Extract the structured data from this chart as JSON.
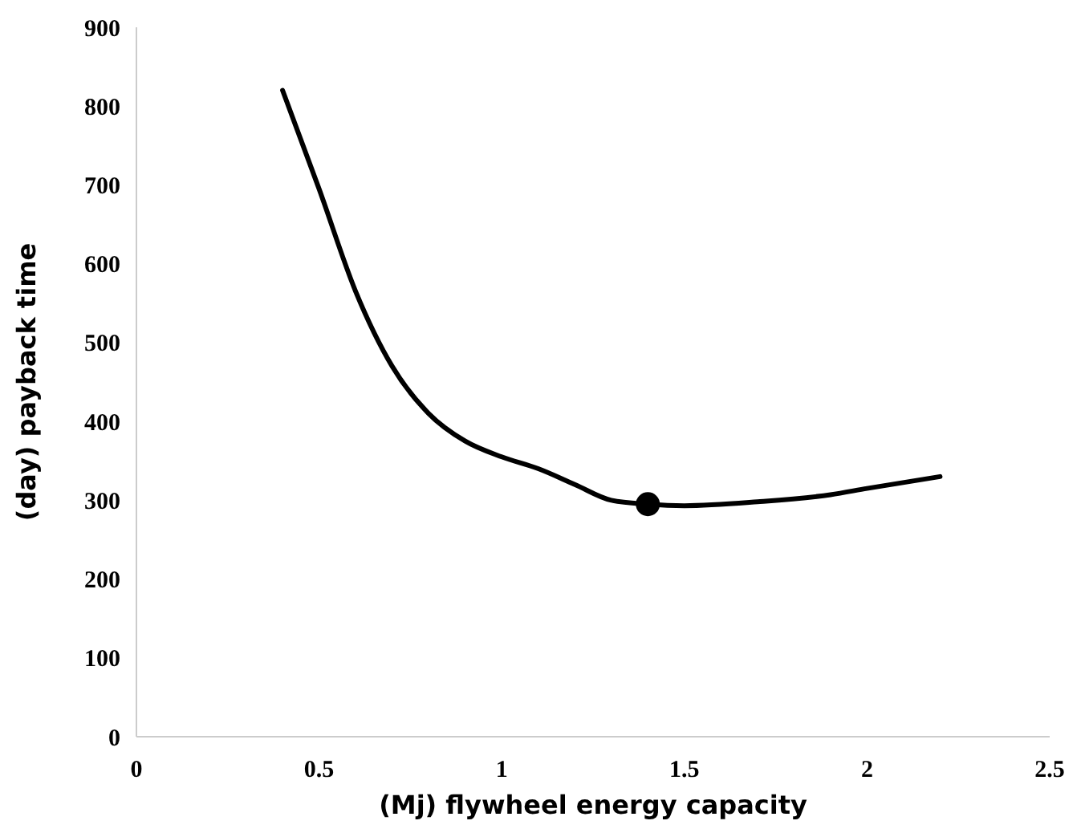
{
  "chart_data": {
    "type": "line",
    "xlabel": "(Mj) flywheel energy capacity",
    "ylabel": "(day) payback time",
    "xlim": [
      0,
      2.5
    ],
    "xticks": [
      0,
      0.5,
      1,
      1.5,
      2,
      2.5
    ],
    "ylim": [
      0,
      900
    ],
    "yticks": [
      0,
      100,
      200,
      300,
      400,
      500,
      600,
      700,
      800,
      900
    ],
    "grid": false,
    "series": [
      {
        "color": "#000000",
        "marker": "none",
        "x": [
          0.4,
          0.5,
          0.6,
          0.7,
          0.8,
          0.9,
          1.0,
          1.1,
          1.2,
          1.3,
          1.4,
          1.5,
          1.7,
          1.9,
          2.0,
          2.2
        ],
        "values": [
          820,
          695,
          565,
          470,
          410,
          375,
          355,
          340,
          320,
          300,
          295,
          293,
          298,
          307,
          315,
          330
        ]
      },
      {
        "type": "scatter",
        "color": "#000000",
        "marker": "circle",
        "x": [
          1.4
        ],
        "values": [
          295
        ]
      }
    ]
  }
}
